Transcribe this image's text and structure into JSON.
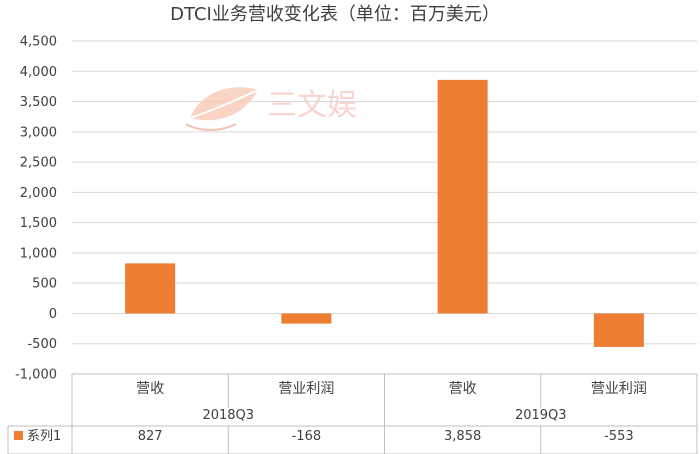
{
  "chart_data": {
    "type": "bar",
    "title": "DTCI业务营收变化表（单位：百万美元）",
    "groups": [
      "2018Q3",
      "2019Q3"
    ],
    "categories": [
      "营收",
      "营业利润",
      "营收",
      "营业利润"
    ],
    "series": [
      {
        "name": "系列1",
        "values": [
          827,
          -168,
          3858,
          -553
        ]
      }
    ],
    "table_values": [
      "827",
      "-168",
      "3,858",
      "-553"
    ],
    "yticks": [
      "4,500",
      "4,000",
      "3,500",
      "3,000",
      "2,500",
      "2,000",
      "1,500",
      "1,000",
      "500",
      "0",
      "-500",
      "-1,000"
    ],
    "ylim": [
      -1000,
      4500
    ],
    "grid": true,
    "bar_color": "#ED7D31",
    "data_table": true
  },
  "watermark": {
    "text": "三文娱",
    "icon": "leaf-logo-icon"
  }
}
